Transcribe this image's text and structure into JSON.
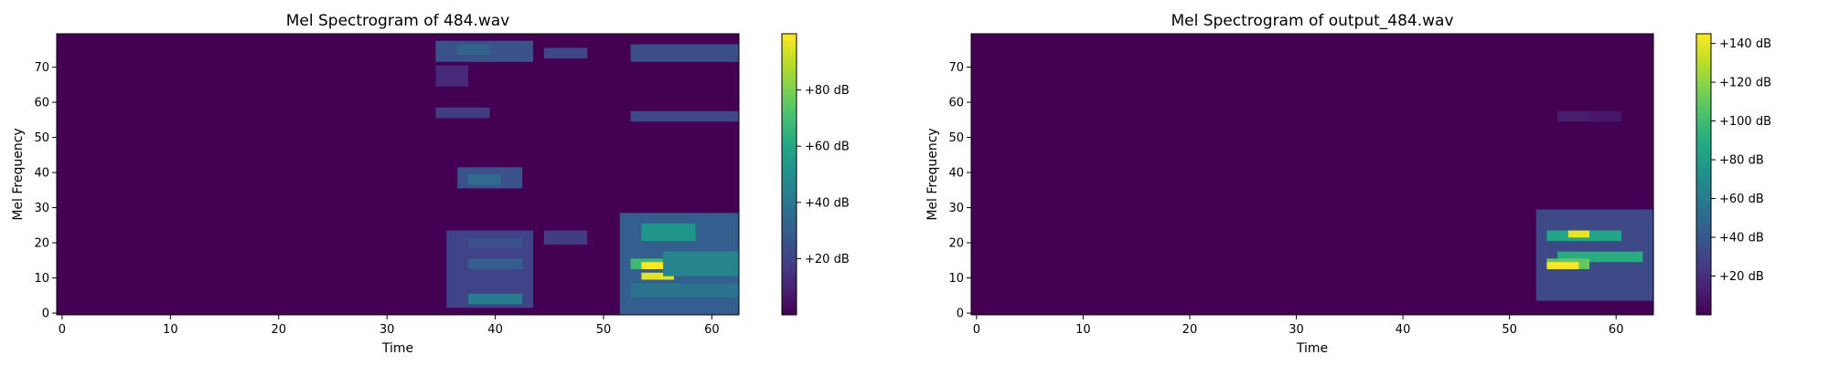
{
  "chart_data": [
    {
      "type": "heatmap",
      "title": "Mel Spectrogram of 484.wav",
      "xlabel": "Time",
      "ylabel": "Mel Frequency",
      "xlim": [
        -0.5,
        62.5
      ],
      "ylim": [
        -0.5,
        79.5
      ],
      "xticks": [
        0,
        10,
        20,
        30,
        40,
        50,
        60
      ],
      "yticks": [
        0,
        10,
        20,
        30,
        40,
        50,
        60,
        70
      ],
      "colormap": "viridis",
      "colorbar": {
        "vmin": 0,
        "vmax": 100,
        "ticks": [
          20,
          40,
          60,
          80
        ],
        "format": "+{v} dB"
      },
      "shape": {
        "frames": 63,
        "mel_bins": 80
      },
      "features": [
        {
          "t0": 35,
          "t1": 43,
          "f0": 72,
          "f1": 77,
          "v": 25
        },
        {
          "t0": 37,
          "t1": 39,
          "f0": 74,
          "f1": 76,
          "v": 32
        },
        {
          "t0": 45,
          "t1": 48,
          "f0": 73,
          "f1": 75,
          "v": 22
        },
        {
          "t0": 53,
          "t1": 62,
          "f0": 72,
          "f1": 76,
          "v": 24
        },
        {
          "t0": 35,
          "t1": 37,
          "f0": 65,
          "f1": 70,
          "v": 12
        },
        {
          "t0": 35,
          "t1": 39,
          "f0": 56,
          "f1": 58,
          "v": 18
        },
        {
          "t0": 53,
          "t1": 62,
          "f0": 55,
          "f1": 57,
          "v": 22
        },
        {
          "t0": 37,
          "t1": 42,
          "f0": 36,
          "f1": 41,
          "v": 25
        },
        {
          "t0": 38,
          "t1": 40,
          "f0": 37,
          "f1": 39,
          "v": 35
        },
        {
          "t0": 36,
          "t1": 43,
          "f0": 2,
          "f1": 23,
          "v": 20
        },
        {
          "t0": 38,
          "t1": 42,
          "f0": 3,
          "f1": 5,
          "v": 42
        },
        {
          "t0": 38,
          "t1": 42,
          "f0": 13,
          "f1": 15,
          "v": 30
        },
        {
          "t0": 38,
          "t1": 42,
          "f0": 19,
          "f1": 21,
          "v": 25
        },
        {
          "t0": 45,
          "t1": 48,
          "f0": 20,
          "f1": 23,
          "v": 18
        },
        {
          "t0": 52,
          "t1": 62,
          "f0": 0,
          "f1": 28,
          "v": 30
        },
        {
          "t0": 54,
          "t1": 58,
          "f0": 21,
          "f1": 25,
          "v": 52
        },
        {
          "t0": 53,
          "t1": 57,
          "f0": 13,
          "f1": 15,
          "v": 68
        },
        {
          "t0": 54,
          "t1": 56,
          "f0": 13,
          "f1": 14,
          "v": 100
        },
        {
          "t0": 54,
          "t1": 56,
          "f0": 10,
          "f1": 11,
          "v": 96
        },
        {
          "t0": 56,
          "t1": 62,
          "f0": 11,
          "f1": 17,
          "v": 45
        },
        {
          "t0": 53,
          "t1": 62,
          "f0": 5,
          "f1": 8,
          "v": 38
        }
      ]
    },
    {
      "type": "heatmap",
      "title": "Mel Spectrogram of output_484.wav",
      "xlabel": "Time",
      "ylabel": "Mel Frequency",
      "xlim": [
        -0.5,
        63.5
      ],
      "ylim": [
        -0.5,
        79.5
      ],
      "xticks": [
        0,
        10,
        20,
        30,
        40,
        50,
        60
      ],
      "yticks": [
        0,
        10,
        20,
        30,
        40,
        50,
        60,
        70
      ],
      "colormap": "viridis",
      "colorbar": {
        "vmin": 0,
        "vmax": 145,
        "ticks": [
          20,
          40,
          60,
          80,
          100,
          120,
          140
        ],
        "format": "+{v} dB"
      },
      "shape": {
        "frames": 64,
        "mel_bins": 80
      },
      "features": [
        {
          "t0": 55,
          "t1": 57,
          "f0": 55,
          "f1": 57,
          "v": 12
        },
        {
          "t0": 58,
          "t1": 60,
          "f0": 55,
          "f1": 57,
          "v": 10
        },
        {
          "t0": 53,
          "t1": 63,
          "f0": 4,
          "f1": 29,
          "v": 32
        },
        {
          "t0": 54,
          "t1": 60,
          "f0": 21,
          "f1": 23,
          "v": 85
        },
        {
          "t0": 56,
          "t1": 57,
          "f0": 22,
          "f1": 23,
          "v": 140
        },
        {
          "t0": 55,
          "t1": 62,
          "f0": 15,
          "f1": 17,
          "v": 90
        },
        {
          "t0": 54,
          "t1": 57,
          "f0": 13,
          "f1": 15,
          "v": 110
        },
        {
          "t0": 54,
          "t1": 56,
          "f0": 13,
          "f1": 14,
          "v": 145
        }
      ]
    }
  ]
}
